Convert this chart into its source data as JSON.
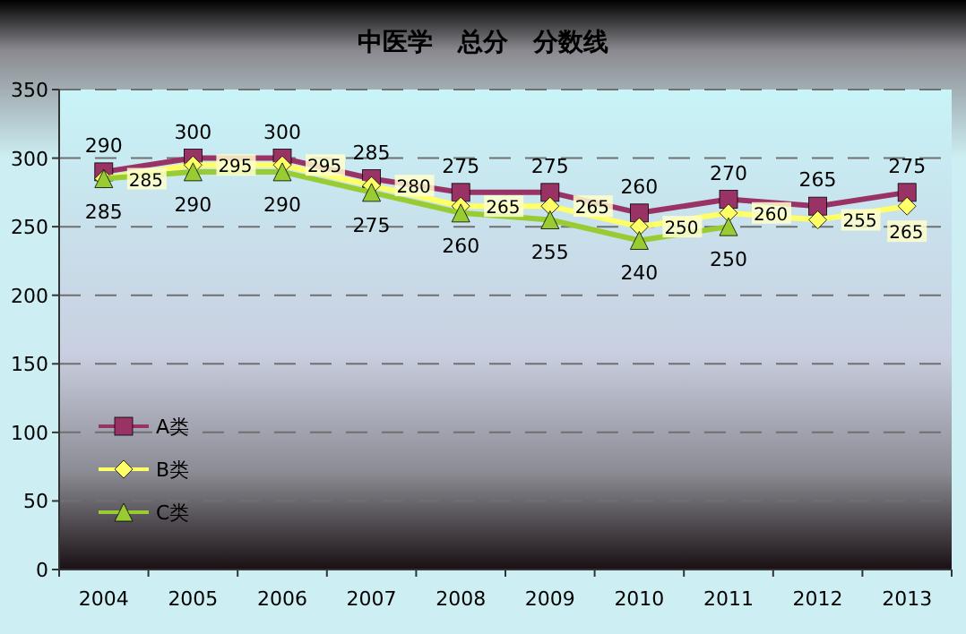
{
  "chart_data": {
    "type": "line",
    "title": "中医学　总分　分数线",
    "categories": [
      "2004",
      "2005",
      "2006",
      "2007",
      "2008",
      "2009",
      "2010",
      "2011",
      "2012",
      "2013"
    ],
    "series": [
      {
        "name": "A类",
        "color": "#993366",
        "marker": "square",
        "values": [
          290,
          300,
          300,
          285,
          275,
          275,
          260,
          270,
          265,
          275
        ]
      },
      {
        "name": "B类",
        "color": "#ffff66",
        "marker": "diamond",
        "values": [
          285,
          295,
          295,
          280,
          265,
          265,
          250,
          260,
          255,
          265
        ]
      },
      {
        "name": "C类",
        "color": "#99cc33",
        "marker": "triangle",
        "values": [
          285,
          290,
          290,
          275,
          260,
          255,
          240,
          250,
          null,
          null
        ]
      }
    ],
    "ylim": [
      0,
      350
    ],
    "yticks": [
      0,
      50,
      100,
      150,
      200,
      250,
      300,
      350
    ],
    "grid": "y",
    "legend": "bottom left",
    "data_labels": true,
    "line_style": "solid"
  }
}
